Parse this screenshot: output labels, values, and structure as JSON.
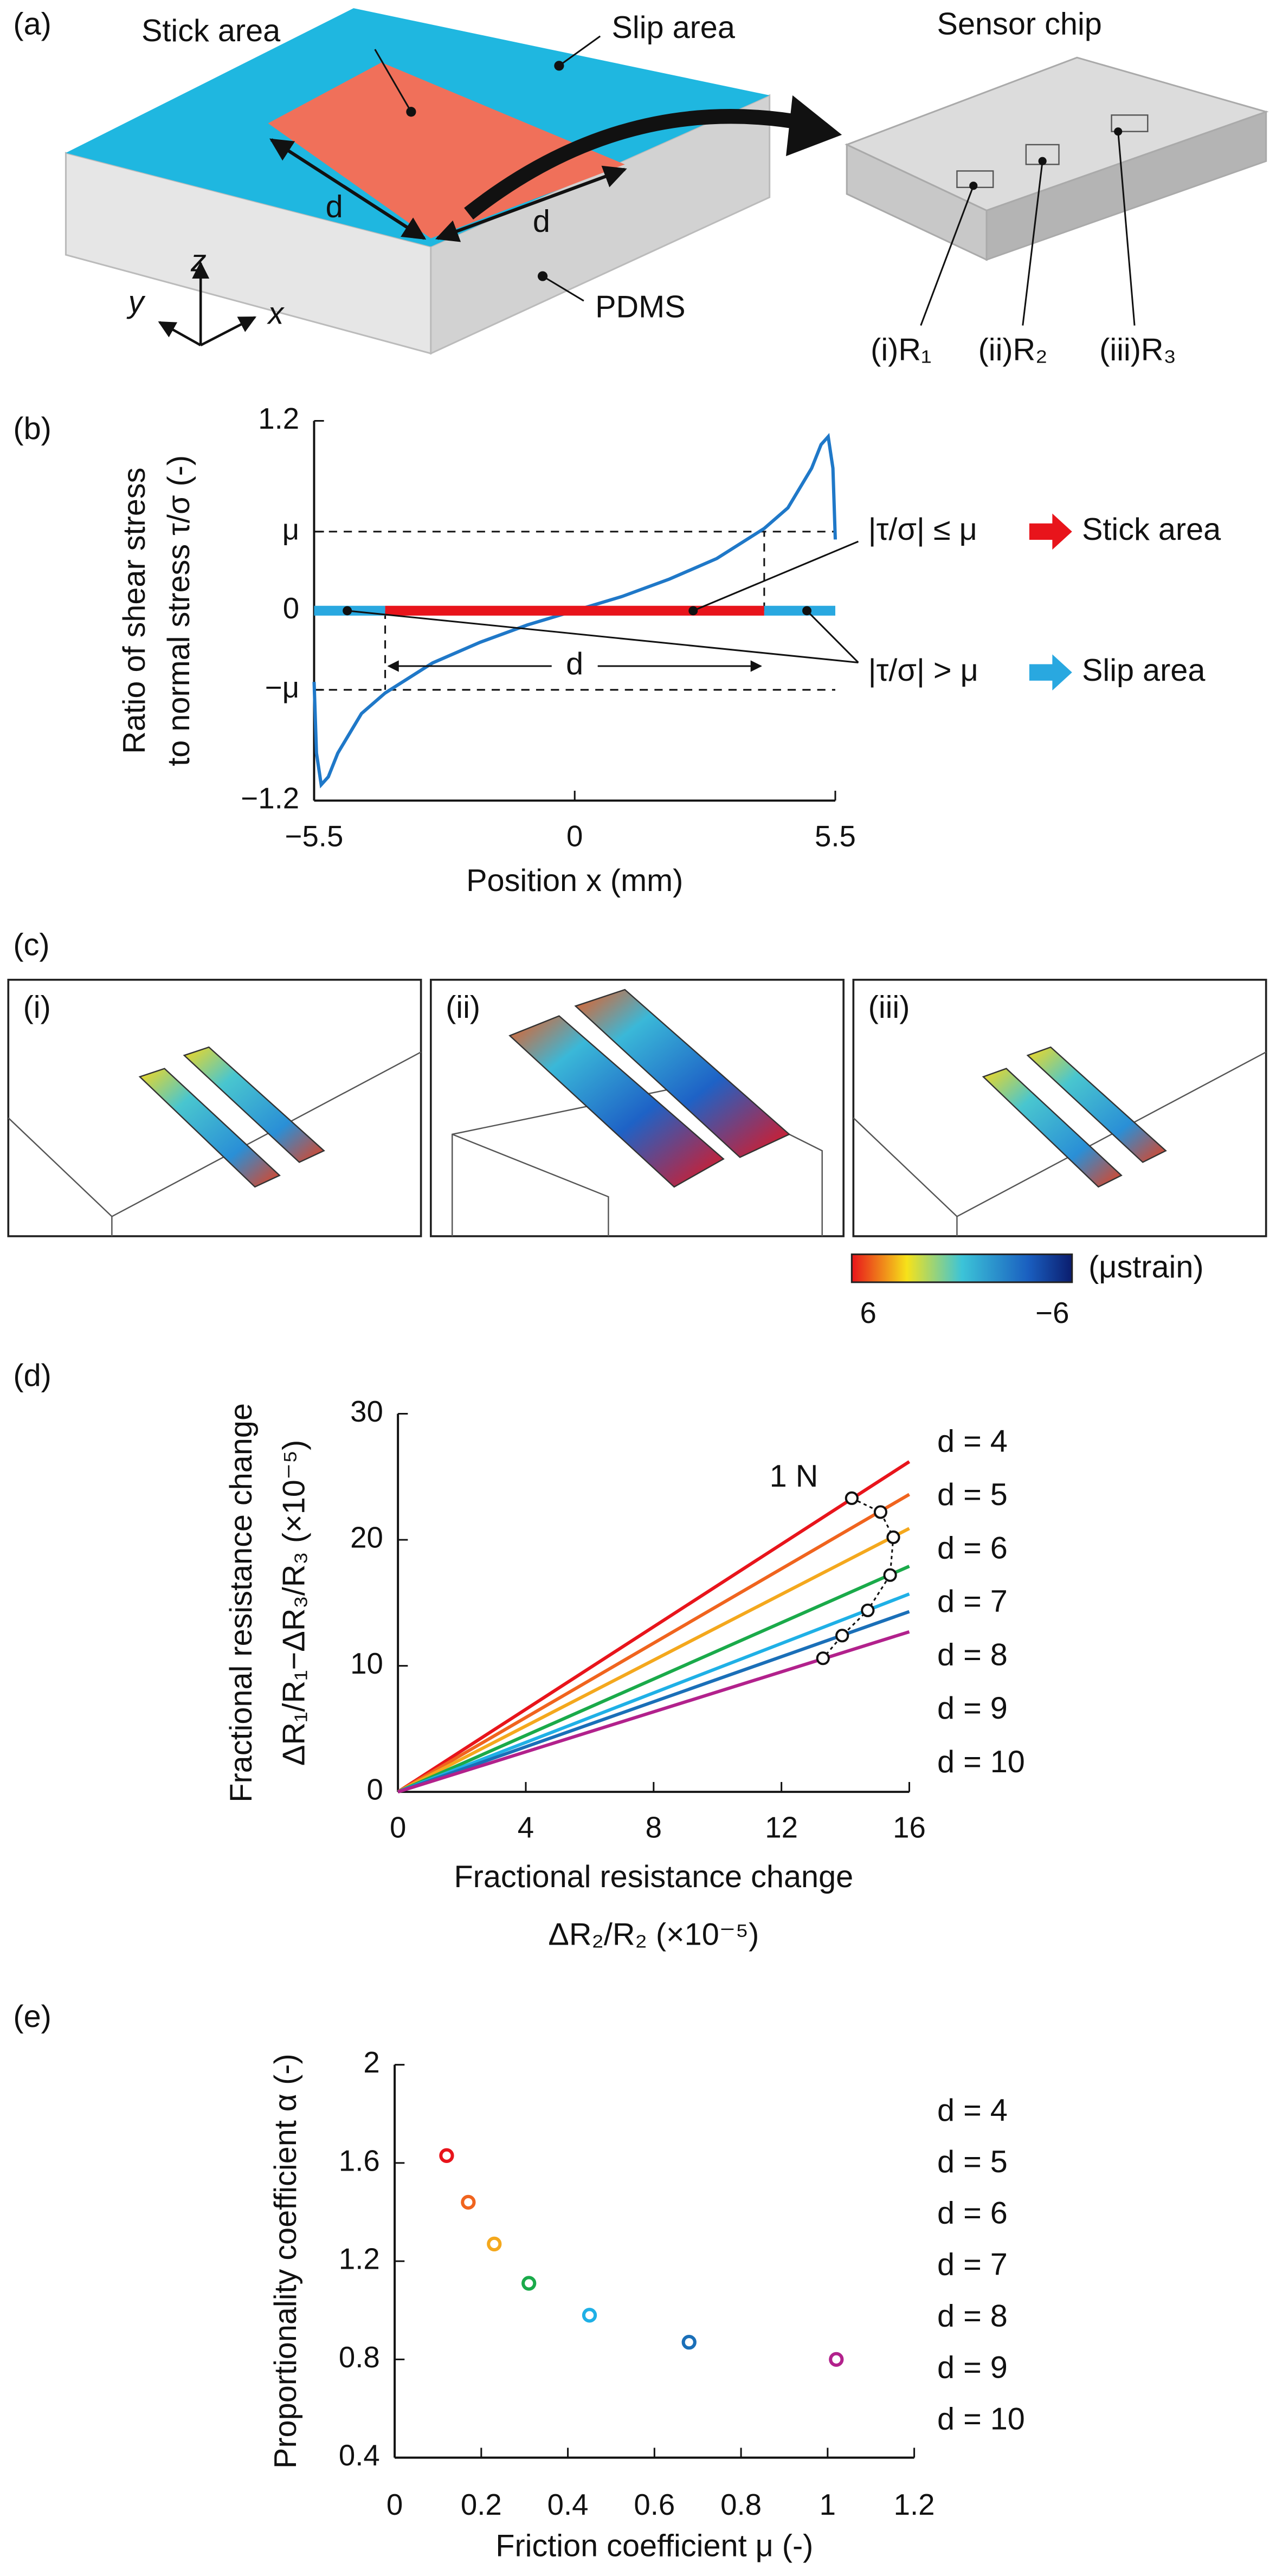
{
  "panel_a": {
    "label": "(a)",
    "stick_area": "Stick area",
    "slip_area": "Slip area",
    "pdms": "PDMS",
    "sensor_chip": "Sensor chip",
    "d_labels": [
      "d",
      "d"
    ],
    "axes": [
      "x",
      "y",
      "z"
    ],
    "resistors": [
      "(i)R₁",
      "(ii)R₂",
      "(iii)R₃"
    ]
  },
  "panel_c": {
    "label": "(c)",
    "images": [
      "(i)",
      "(ii)",
      "(iii)"
    ],
    "colorbar": {
      "ticks": [
        6,
        {
          "value": -6,
          "label": "−6"
        }
      ],
      "unit": "(μstrain)"
    }
  },
  "chart_data": [
    {
      "type": "line",
      "label": "(b)",
      "ylabel": [
        "Ratio of shear stress",
        "to normal stress τ/σ (-)"
      ],
      "xlabel": [
        "Position x (mm)"
      ],
      "xlim": [
        -5.5,
        5.5
      ],
      "ylim": [
        -1.2,
        1.2
      ],
      "xticks": [
        {
          "value": -5.5,
          "label": "−5.5"
        },
        0,
        5.5
      ],
      "yticks": [
        1.2,
        {
          "value": 0.5,
          "label": "μ"
        },
        0,
        {
          "value": -0.5,
          "label": "−μ"
        },
        {
          "value": -1.2,
          "label": "−1.2"
        }
      ],
      "series": [
        {
          "color": "#1f78c8",
          "x": [
            -5.5,
            -5.45,
            -5.35,
            -5.2,
            -5,
            -4.5,
            -4,
            -3,
            -2,
            -1,
            0,
            1,
            2,
            3,
            4,
            4.5,
            5,
            5.2,
            5.35,
            5.45,
            5.5
          ],
          "values": [
            -0.45,
            -0.9,
            -1.1,
            -1.05,
            -0.9,
            -0.65,
            -0.52,
            -0.33,
            -0.2,
            -0.09,
            0,
            0.09,
            0.2,
            0.33,
            0.52,
            0.65,
            0.9,
            1.05,
            1.1,
            0.9,
            0.45
          ]
        }
      ],
      "bands": [
        {
          "x": [
            -5.5,
            -4
          ],
          "color": "#29a8e0"
        },
        {
          "x": [
            -4,
            4
          ],
          "color": "#e8141b"
        },
        {
          "x": [
            4,
            5.5
          ],
          "color": "#29a8e0"
        }
      ],
      "thresholds": {
        "y": [
          0.5,
          -0.5
        ],
        "x": [
          -4,
          4
        ]
      },
      "span": {
        "label": "d",
        "x": [
          -4,
          4
        ],
        "y": -0.35
      },
      "points": {
        "x": [
          -4.8,
          2.5,
          4.9
        ],
        "values": [
          0,
          0,
          0
        ]
      },
      "annotations": [
        {
          "text": "|τ/σ| ≤ μ",
          "result": "Stick area",
          "color": "#e8141b"
        },
        {
          "text": "|τ/σ| > μ",
          "result": "Slip area",
          "color": "#29a8e0"
        }
      ]
    },
    {
      "type": "line",
      "label": "(d)",
      "ylabel": [
        "Fractional resistance change",
        "ΔR₁/R₁−ΔR₃/R₃ (×10⁻⁵)"
      ],
      "xlabel": [
        "Fractional resistance change",
        "ΔR₂/R₂ (×10⁻⁵)"
      ],
      "xlim": [
        0,
        16
      ],
      "ylim": [
        0,
        30
      ],
      "xticks": [
        0,
        4,
        8,
        12,
        16
      ],
      "yticks": [
        0,
        10,
        20,
        30
      ],
      "series": [
        {
          "name": "d = 4",
          "color": "#e8141b",
          "x": [
            0,
            16
          ],
          "values": [
            0,
            26.2
          ]
        },
        {
          "name": "d = 5",
          "color": "#f0641e",
          "x": [
            0,
            16
          ],
          "values": [
            0,
            23.6
          ]
        },
        {
          "name": "d = 6",
          "color": "#f4a81d",
          "x": [
            0,
            16
          ],
          "values": [
            0,
            20.9
          ]
        },
        {
          "name": "d = 7",
          "color": "#1aaa4a",
          "x": [
            0,
            16
          ],
          "values": [
            0,
            17.9
          ]
        },
        {
          "name": "d = 8",
          "color": "#1fb0e6",
          "x": [
            0,
            16
          ],
          "values": [
            0,
            15.7
          ]
        },
        {
          "name": "d = 9",
          "color": "#1a6fb8",
          "x": [
            0,
            16
          ],
          "values": [
            0,
            14.3
          ]
        },
        {
          "name": "d = 10",
          "color": "#b2218c",
          "x": [
            0,
            16
          ],
          "values": [
            0,
            12.7
          ]
        }
      ],
      "markers": {
        "name": "1 N",
        "x": [
          14.2,
          15.1,
          15.5,
          15.4,
          14.7,
          13.9,
          13.3
        ],
        "values": [
          23.3,
          22.2,
          20.2,
          17.2,
          14.4,
          12.4,
          10.6
        ]
      }
    },
    {
      "type": "scatter",
      "label": "(e)",
      "ylabel": [
        "Proportionality coefficient α (-)"
      ],
      "xlabel": [
        "Friction coefficient μ (-)"
      ],
      "xlim": [
        0,
        1.2
      ],
      "ylim": [
        0.4,
        2
      ],
      "xticks": [
        0,
        0.2,
        0.4,
        0.6,
        0.8,
        1,
        1.2
      ],
      "yticks": [
        0.4,
        0.8,
        1.2,
        1.6,
        2
      ],
      "series": [
        {
          "name": "d = 4",
          "color": "#e8141b",
          "x": [
            0.12
          ],
          "values": [
            1.63
          ]
        },
        {
          "name": "d = 5",
          "color": "#f0641e",
          "x": [
            0.17
          ],
          "values": [
            1.44
          ]
        },
        {
          "name": "d = 6",
          "color": "#f4a81d",
          "x": [
            0.23
          ],
          "values": [
            1.27
          ]
        },
        {
          "name": "d = 7",
          "color": "#1aaa4a",
          "x": [
            0.31
          ],
          "values": [
            1.11
          ]
        },
        {
          "name": "d = 8",
          "color": "#1fb0e6",
          "x": [
            0.45
          ],
          "values": [
            0.98
          ]
        },
        {
          "name": "d = 9",
          "color": "#1a6fb8",
          "x": [
            0.68
          ],
          "values": [
            0.87
          ]
        },
        {
          "name": "d = 10",
          "color": "#b2218c",
          "x": [
            1.02
          ],
          "values": [
            0.8
          ]
        }
      ]
    }
  ]
}
